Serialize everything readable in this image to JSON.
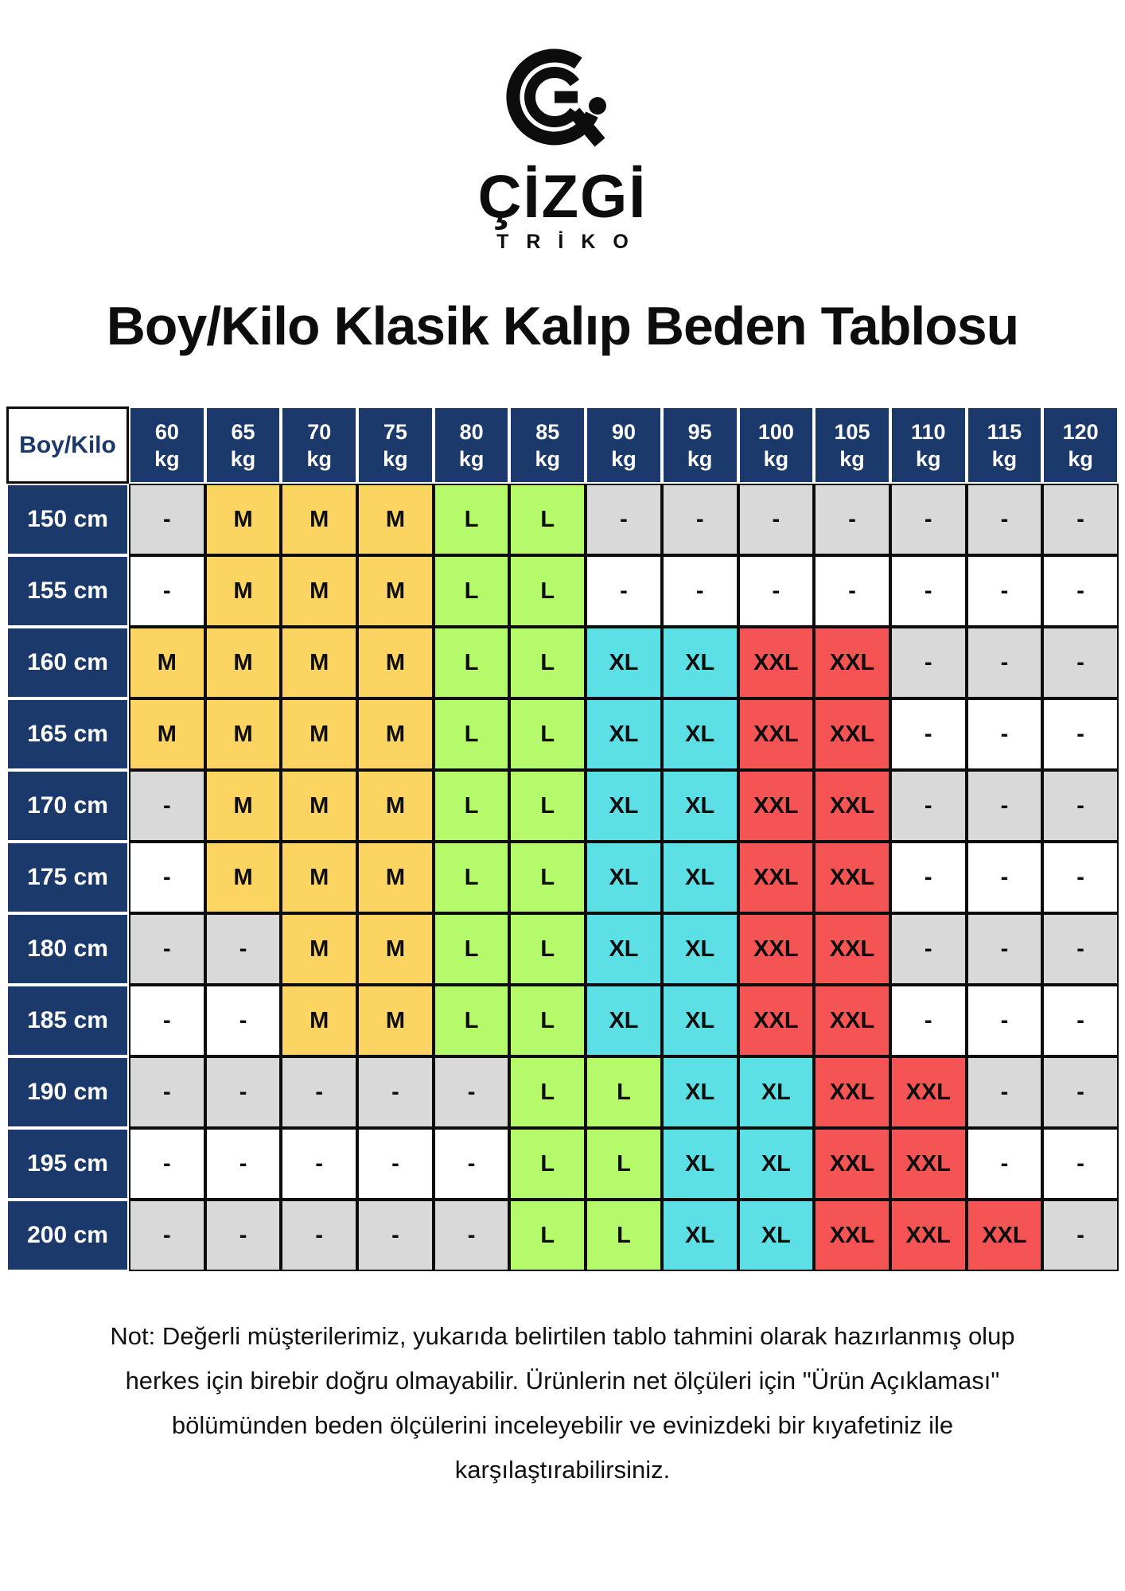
{
  "colors": {
    "navy": "#1b3a6b",
    "yellow": "#fcd462",
    "green": "#b5fa6b",
    "cyan": "#5ce0e6",
    "red": "#f45453",
    "gray": "#d9d9d9"
  },
  "logo": {
    "brand": "ÇİZGİ",
    "sub": "TRİKO"
  },
  "title": "Boy/Kilo Klasik Kalıp Beden Tablosu",
  "table": {
    "corner": "Boy/Kilo",
    "weights": [
      {
        "value": "60",
        "unit": "kg"
      },
      {
        "value": "65",
        "unit": "kg"
      },
      {
        "value": "70",
        "unit": "kg"
      },
      {
        "value": "75",
        "unit": "kg"
      },
      {
        "value": "80",
        "unit": "kg"
      },
      {
        "value": "85",
        "unit": "kg"
      },
      {
        "value": "90",
        "unit": "kg"
      },
      {
        "value": "95",
        "unit": "kg"
      },
      {
        "value": "100",
        "unit": "kg"
      },
      {
        "value": "105",
        "unit": "kg"
      },
      {
        "value": "110",
        "unit": "kg"
      },
      {
        "value": "115",
        "unit": "kg"
      },
      {
        "value": "120",
        "unit": "kg"
      }
    ],
    "rows": [
      {
        "label": "150 cm",
        "shade": "gray",
        "cells": [
          "-",
          "M",
          "M",
          "M",
          "L",
          "L",
          "-",
          "-",
          "-",
          "-",
          "-",
          "-",
          "-"
        ]
      },
      {
        "label": "155 cm",
        "shade": "white",
        "cells": [
          "-",
          "M",
          "M",
          "M",
          "L",
          "L",
          "-",
          "-",
          "-",
          "-",
          "-",
          "-",
          "-"
        ]
      },
      {
        "label": "160 cm",
        "shade": "gray",
        "cells": [
          "M",
          "M",
          "M",
          "M",
          "L",
          "L",
          "XL",
          "XL",
          "XXL",
          "XXL",
          "-",
          "-",
          "-"
        ]
      },
      {
        "label": "165 cm",
        "shade": "white",
        "cells": [
          "M",
          "M",
          "M",
          "M",
          "L",
          "L",
          "XL",
          "XL",
          "XXL",
          "XXL",
          "-",
          "-",
          "-"
        ]
      },
      {
        "label": "170 cm",
        "shade": "gray",
        "cells": [
          "-",
          "M",
          "M",
          "M",
          "L",
          "L",
          "XL",
          "XL",
          "XXL",
          "XXL",
          "-",
          "-",
          "-"
        ]
      },
      {
        "label": "175 cm",
        "shade": "white",
        "cells": [
          "-",
          "M",
          "M",
          "M",
          "L",
          "L",
          "XL",
          "XL",
          "XXL",
          "XXL",
          "-",
          "-",
          "-"
        ]
      },
      {
        "label": "180 cm",
        "shade": "gray",
        "cells": [
          "-",
          "-",
          "M",
          "M",
          "L",
          "L",
          "XL",
          "XL",
          "XXL",
          "XXL",
          "-",
          "-",
          "-"
        ]
      },
      {
        "label": "185 cm",
        "shade": "white",
        "cells": [
          "-",
          "-",
          "M",
          "M",
          "L",
          "L",
          "XL",
          "XL",
          "XXL",
          "XXL",
          "-",
          "-",
          "-"
        ]
      },
      {
        "label": "190 cm",
        "shade": "gray",
        "cells": [
          "-",
          "-",
          "-",
          "-",
          "-",
          "L",
          "L",
          "XL",
          "XL",
          "XXL",
          "XXL",
          "-",
          "-"
        ]
      },
      {
        "label": "195 cm",
        "shade": "white",
        "cells": [
          "-",
          "-",
          "-",
          "-",
          "-",
          "L",
          "L",
          "XL",
          "XL",
          "XXL",
          "XXL",
          "-",
          "-"
        ]
      },
      {
        "label": "200 cm",
        "shade": "gray",
        "cells": [
          "-",
          "-",
          "-",
          "-",
          "-",
          "L",
          "L",
          "XL",
          "XL",
          "XXL",
          "XXL",
          "XXL",
          "-"
        ]
      }
    ]
  },
  "note": {
    "lines": [
      "Not: Değerli müşterilerimiz, yukarıda belirtilen tablo tahmini olarak hazırlanmış olup",
      "herkes için birebir doğru olmayabilir. Ürünlerin net ölçüleri için \"Ürün Açıklaması\"",
      "bölümünden beden ölçülerini inceleyebilir ve evinizdeki bir kıyafetiniz ile",
      "karşılaştırabilirsiniz."
    ]
  }
}
